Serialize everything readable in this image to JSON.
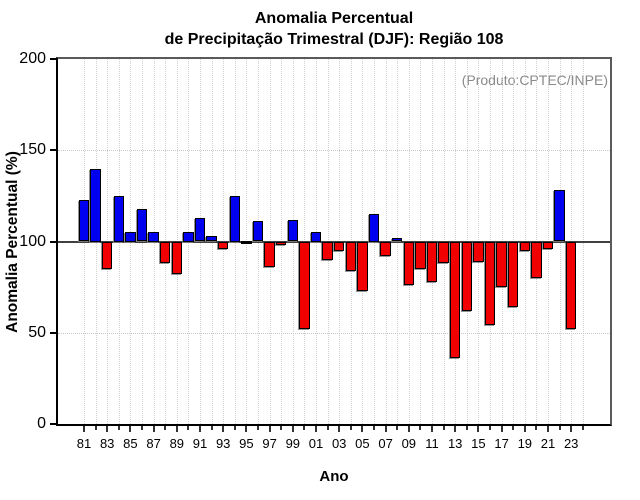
{
  "title": {
    "line1": "Anomalia Percentual",
    "line2": "de Precipitação Trimestral (DJF): Região 108"
  },
  "annotation": {
    "text": "(Produto:CPTEC/INPE)",
    "color": "#8a8a8a"
  },
  "axes": {
    "ylabel": "Anomalia Percentual (%)",
    "xlabel": "Ano"
  },
  "chart_data": {
    "type": "bar",
    "title": "Anomalia Percentual de Precipitação Trimestral (DJF): Região 108",
    "xlabel": "Ano",
    "ylabel": "Anomalia Percentual (%)",
    "ylim": [
      0,
      200
    ],
    "yticks": [
      0,
      50,
      100,
      150,
      200
    ],
    "baseline": 100,
    "grid": {
      "h_dotted_at": [
        50,
        150
      ],
      "v_dotted": "every-year-tick"
    },
    "legend": "none",
    "x_label_every": 2,
    "extra_unlabeled_axis_ticks": 1,
    "categories": [
      "81",
      "82",
      "83",
      "84",
      "85",
      "86",
      "87",
      "88",
      "89",
      "90",
      "91",
      "92",
      "93",
      "94",
      "95",
      "96",
      "97",
      "98",
      "99",
      "00",
      "01",
      "02",
      "03",
      "04",
      "05",
      "06",
      "07",
      "08",
      "09",
      "10",
      "11",
      "12",
      "13",
      "14",
      "15",
      "16",
      "17",
      "18",
      "19",
      "20",
      "21",
      "22",
      "23"
    ],
    "values": [
      123,
      140,
      85,
      125,
      105,
      118,
      105,
      88,
      82,
      105,
      113,
      103,
      96,
      125,
      100,
      111,
      86,
      98,
      112,
      52,
      105,
      90,
      95,
      84,
      73,
      115,
      92,
      102,
      76,
      85,
      78,
      88,
      36,
      62,
      89,
      54,
      75,
      64,
      95,
      80,
      96,
      128,
      52
    ],
    "bar_colors": {
      "above_baseline": "#0000F0",
      "below_baseline": "#F00000",
      "at_baseline": "#000000"
    },
    "color_rule": "blue if value > 100, red if value < 100, black dash if value = 100"
  }
}
